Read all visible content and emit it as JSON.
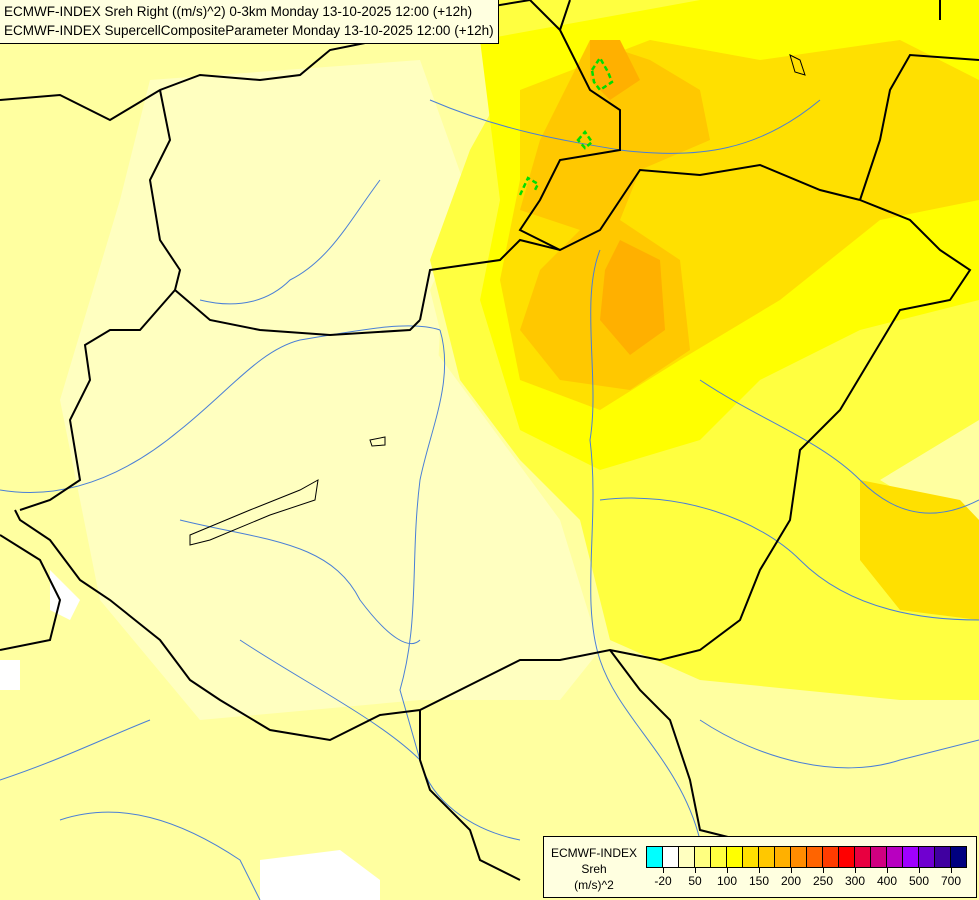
{
  "header": {
    "line1": "ECMWF-INDEX Sreh Right ((m/s)^2) 0-3km Monday 13-10-2025 12:00 (+12h)",
    "line2": "ECMWF-INDEX SupercellCompositeParameter Monday 13-10-2025 12:00 (+12h)"
  },
  "legend": {
    "title_lines": [
      "ECMWF-INDEX",
      "Sreh",
      "(m/s)^2"
    ],
    "colors": [
      "#00ffff",
      "#ffffff",
      "#ffffc0",
      "#ffff80",
      "#ffff40",
      "#ffff00",
      "#ffe000",
      "#ffc800",
      "#ffb000",
      "#ff8c00",
      "#ff6400",
      "#ff3c00",
      "#ff0000",
      "#e80040",
      "#d00080",
      "#b800c0",
      "#a000ff",
      "#7000d0",
      "#4000a0",
      "#000080"
    ],
    "labels": [
      "-20",
      "50",
      "100",
      "150",
      "200",
      "250",
      "300",
      "400",
      "500",
      "700"
    ]
  },
  "map": {
    "colors": {
      "background": "#ffffa0",
      "light": "#ffffc0",
      "mid": "#ffff40",
      "yellow": "#ffff00",
      "gold": "#ffe000",
      "orange": "#ffc800",
      "deep": "#ffb000",
      "scp_contour": "#00dd00",
      "border": "#000000",
      "river": "#4a7fd6"
    }
  }
}
